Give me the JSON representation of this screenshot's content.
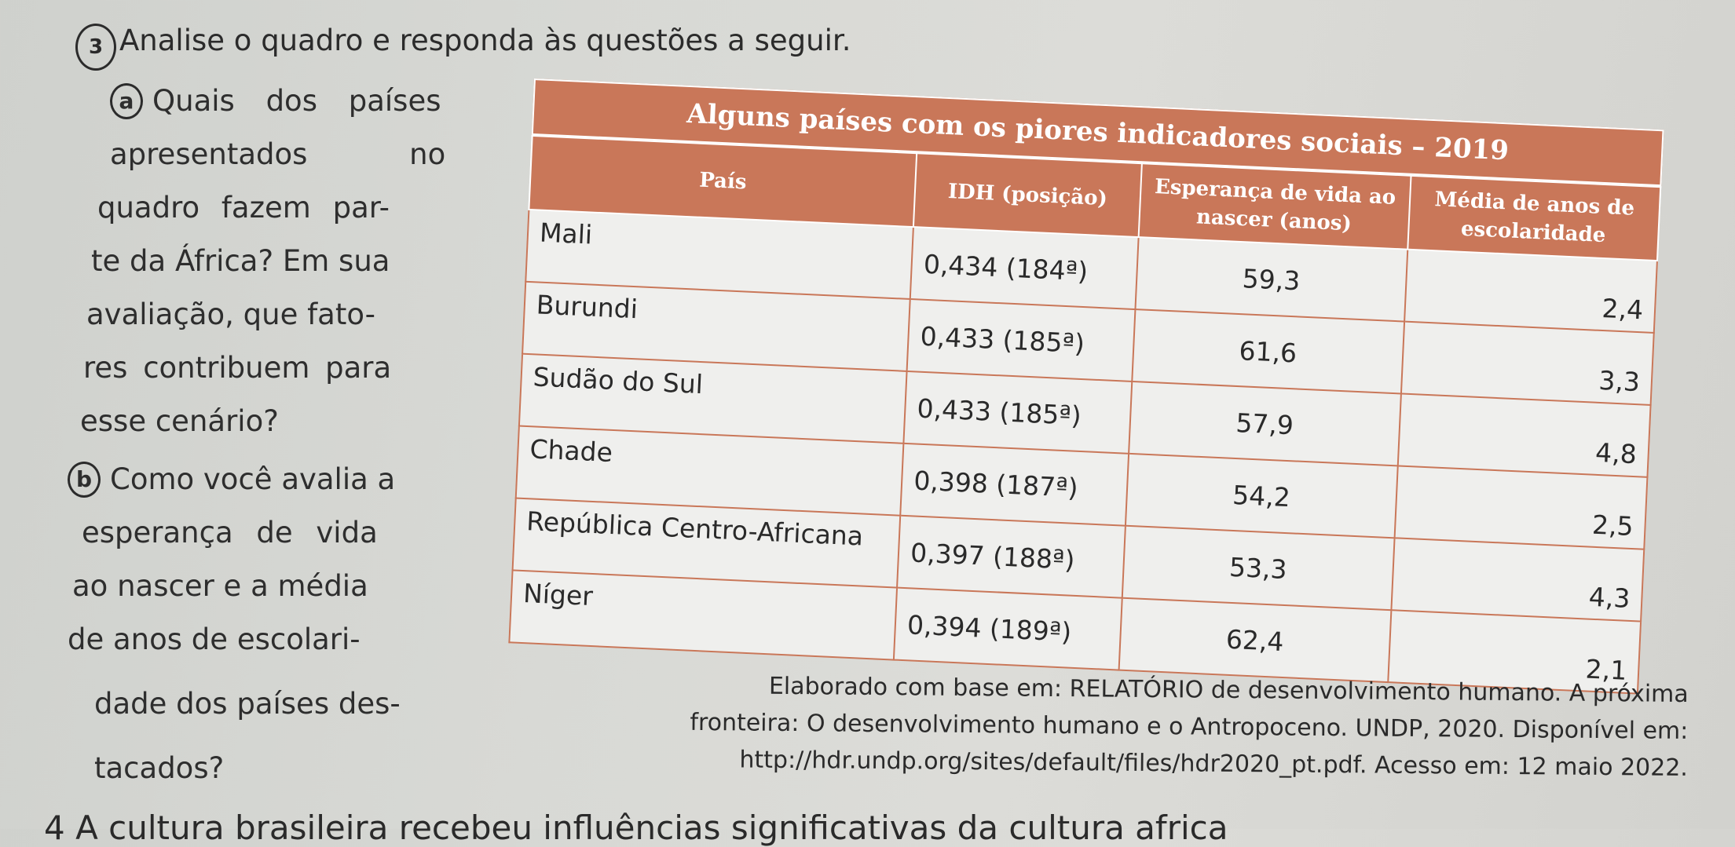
{
  "exercise": {
    "number": "3",
    "prompt": "Analise o quadro e responda às questões a seguir."
  },
  "questions": {
    "a": {
      "letter": "a",
      "lines": [
        "Quais dos países",
        "apresentados no",
        "quadro fazem par-",
        "te da África? Em sua",
        "avaliação, que fato-",
        "res contribuem para",
        "esse cenário?"
      ]
    },
    "b": {
      "letter": "b",
      "lines": [
        "Como você avalia a",
        "esperança de vida",
        "ao nascer e a média",
        "de anos de escolari-",
        "dade dos países des-",
        "tacados?"
      ]
    }
  },
  "table": {
    "title": "Alguns países com os piores indicadores sociais – 2019",
    "headers": {
      "country": "País",
      "idh": "IDH (posição)",
      "life": "Esperança de vida ao nascer (anos)",
      "school": "Média de anos de escolaridade"
    },
    "rows": [
      {
        "country": "Mali",
        "idh": "0,434 (184ª)",
        "life": "59,3",
        "school": "2,4"
      },
      {
        "country": "Burundi",
        "idh": "0,433 (185ª)",
        "life": "61,6",
        "school": "3,3"
      },
      {
        "country": "Sudão do Sul",
        "idh": "0,433 (185ª)",
        "life": "57,9",
        "school": "4,8"
      },
      {
        "country": "Chade",
        "idh": "0,398 (187ª)",
        "life": "54,2",
        "school": "2,5"
      },
      {
        "country": "República Centro-Africana",
        "idh": "0,397 (188ª)",
        "life": "53,3",
        "school": "4,3"
      },
      {
        "country": "Níger",
        "idh": "0,394 (189ª)",
        "life": "62,4",
        "school": "2,1"
      }
    ],
    "colors": {
      "header_bg": "#c97759",
      "border": "#c97759"
    }
  },
  "source": {
    "line1": "Elaborado com base em: RELATÓRIO de desenvolvimento humano. A próxima",
    "line2": "fronteira: O desenvolvimento humano e o Antropoceno. UNDP, 2020. Disponível em:",
    "line3": "http://hdr.undp.org/sites/default/files/hdr2020_pt.pdf. Acesso em: 12 maio 2022."
  },
  "next_exercise": {
    "text": "4 A cultura brasileira recebeu influências significativas da cultura africa"
  }
}
